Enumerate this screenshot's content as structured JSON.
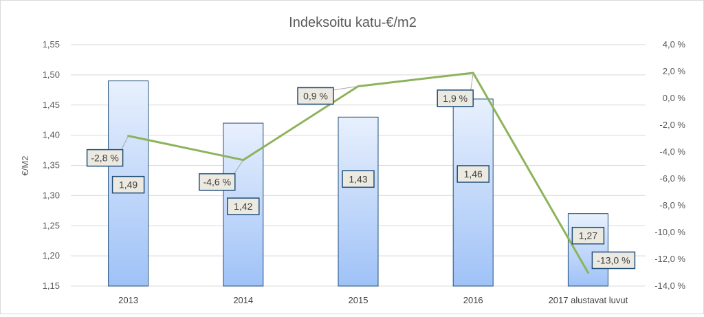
{
  "chart_data": {
    "type": "bar",
    "title": "Indeksoitu  katu-€/m2",
    "ylabel": "€/M2",
    "y2label": "",
    "categories": [
      "2013",
      "2014",
      "2015",
      "2016",
      "2017 alustavat luvut"
    ],
    "ylim": [
      1.15,
      1.55
    ],
    "y_ticks": [
      "1,15",
      "1,20",
      "1,25",
      "1,30",
      "1,35",
      "1,40",
      "1,45",
      "1,50",
      "1,55"
    ],
    "y2lim": [
      -14.0,
      4.0
    ],
    "y2_ticks": [
      "-14,0 %",
      "-12,0 %",
      "-10,0 %",
      "-8,0 %",
      "-6,0 %",
      "-4,0 %",
      "-2,0 %",
      "0,0 %",
      "2,0 %",
      "4,0 %"
    ],
    "grid": true,
    "legend": "none",
    "series": [
      {
        "kind": "bar",
        "axis": "left",
        "values": [
          1.49,
          1.42,
          1.43,
          1.46,
          1.27
        ],
        "labels": [
          "1,49",
          "1,42",
          "1,43",
          "1,46",
          "1,27"
        ],
        "color": "#9fc2f7"
      },
      {
        "kind": "line",
        "axis": "right",
        "values": [
          -2.8,
          -4.6,
          0.9,
          1.9,
          -13.0
        ],
        "labels": [
          "-2,8 %",
          "-4,6 %",
          "0,9 %",
          "1,9 %",
          "-13,0 %"
        ],
        "color": "#8db35a"
      }
    ],
    "colors": {
      "grid": "#d9d9d9",
      "label_box_fill": "#ece9e1",
      "label_box_border": "#1f4e79",
      "text": "#595959"
    }
  }
}
